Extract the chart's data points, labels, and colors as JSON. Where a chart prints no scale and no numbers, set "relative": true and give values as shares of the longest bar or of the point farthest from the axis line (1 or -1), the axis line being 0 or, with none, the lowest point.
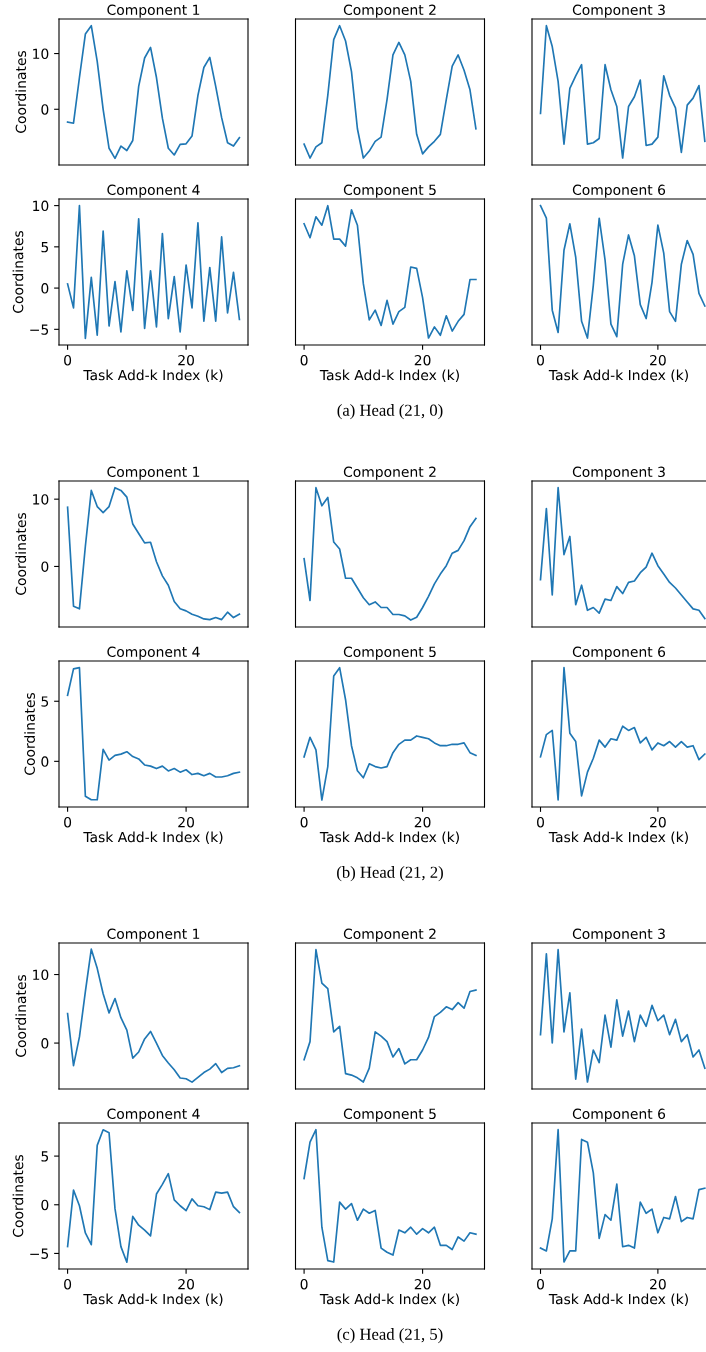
{
  "chart_data": [
    {
      "type": "line",
      "title": "Component 1",
      "ylabel": "Coordinates",
      "categories": [
        null,
        null,
        null,
        null,
        null,
        null,
        null,
        null,
        null,
        null,
        null,
        null,
        null,
        null,
        null,
        null,
        null,
        null,
        null,
        null,
        null,
        null,
        null,
        null,
        null,
        null,
        null,
        null,
        null,
        null
      ],
      "ylim": [
        -10.0,
        16.2
      ],
      "yticks": [
        0,
        10
      ],
      "tick_labels": "y",
      "series": [
        {
          "color": "#1f77b4",
          "values": [
            -2.3,
            -2.5,
            5.7,
            13.5,
            15.0,
            8.6,
            0,
            -7.0,
            -8.8,
            -6.6,
            -7.4,
            -5.6,
            4.1,
            9.2,
            11.1,
            5.7,
            -1.6,
            -7.0,
            -8.2,
            -6.3,
            -6.2,
            -4.8,
            2.5,
            7.5,
            9.3,
            4.1,
            -1.5,
            -6.0,
            -6.6,
            -5.1
          ]
        }
      ]
    },
    {
      "type": "line",
      "title": "Component 2",
      "relative": true,
      "categories": [
        null,
        null,
        null,
        null,
        null,
        null,
        null,
        null,
        null,
        null,
        null,
        null,
        null,
        null,
        null,
        null,
        null,
        null,
        null,
        null,
        null,
        null,
        null,
        null,
        null,
        null,
        null,
        null,
        null,
        null
      ],
      "tick_labels": false,
      "series": [
        {
          "color": "#1f77b4",
          "values": [
            0.15,
            0.05,
            0.13,
            0.16,
            0.5,
            0.9,
            1,
            0.89,
            0.67,
            0.26,
            0.05,
            0.1,
            0.17,
            0.2,
            0.47,
            0.79,
            0.88,
            0.79,
            0.6,
            0.22,
            0.08,
            0.13,
            0.17,
            0.22,
            0.47,
            0.71,
            0.79,
            0.68,
            0.54,
            0.26
          ]
        }
      ]
    },
    {
      "type": "line",
      "title": "Component 3",
      "relative": true,
      "categories": [
        null,
        null,
        null,
        null,
        null,
        null,
        null,
        null,
        null,
        null,
        null,
        null,
        null,
        null,
        null,
        null,
        null,
        null,
        null,
        null,
        null,
        null,
        null,
        null,
        null,
        null,
        null,
        null,
        null
      ],
      "tick_labels": false,
      "series": [
        {
          "color": "#1f77b4",
          "values": [
            0.37,
            1,
            0.85,
            0.6,
            0.15,
            0.55,
            0.64,
            0.72,
            0.15,
            0.16,
            0.19,
            0.72,
            0.54,
            0.42,
            0.05,
            0.42,
            0.49,
            0.61,
            0.14,
            0.15,
            0.2,
            0.64,
            0.5,
            0.41,
            0.09,
            0.43,
            0.48,
            0.57,
            0.17
          ]
        }
      ]
    },
    {
      "type": "line",
      "title": "Component 4",
      "ylabel": "Coordinates",
      "xlabel": "Task Add-k Index (k)",
      "x": [
        0,
        1,
        2,
        3,
        4,
        5,
        6,
        7,
        8,
        9,
        10,
        11,
        12,
        13,
        14,
        15,
        16,
        17,
        18,
        19,
        20,
        21,
        22,
        23,
        24,
        25,
        26,
        27,
        28,
        29
      ],
      "xlim": [
        -1.45,
        30.45
      ],
      "xticks": [
        0,
        20
      ],
      "ylim": [
        -6.9,
        10.8
      ],
      "yticks": [
        {
          "value": -5,
          "label": "−5"
        },
        0,
        5,
        10
      ],
      "series": [
        {
          "color": "#1f77b4",
          "values": [
            0.5,
            -2.4,
            10,
            -6.1,
            1.3,
            -5.7,
            6.9,
            -4.6,
            0.8,
            -5.3,
            2.1,
            -2.7,
            8.4,
            -4.9,
            2.1,
            -4.7,
            6.6,
            -3.7,
            1.4,
            -5.3,
            2.8,
            -2.4,
            7.9,
            -4.0,
            2.5,
            -4.0,
            6.2,
            -3.0,
            1.9,
            -3.8
          ]
        }
      ]
    },
    {
      "type": "line",
      "title": "Component 5",
      "xlabel": "Task Add-k Index (k)",
      "relative": true,
      "x": [
        0,
        1,
        2,
        3,
        4,
        5,
        6,
        7,
        8,
        9,
        10,
        11,
        12,
        13,
        14,
        15,
        16,
        17,
        18,
        19,
        20,
        21,
        22,
        23,
        24,
        25,
        26,
        27,
        28,
        29
      ],
      "xlim": [
        -1.45,
        30.45
      ],
      "xticks": [
        0,
        20
      ],
      "tick_labels": "x",
      "annotations": [
        "(a) Head (21, 0)"
      ],
      "series": [
        {
          "color": "#1f77b4",
          "values": [
            0.87,
            0.77,
            0.92,
            0.86,
            1,
            0.76,
            0.76,
            0.71,
            0.97,
            0.86,
            0.44,
            0.18,
            0.25,
            0.14,
            0.32,
            0.15,
            0.24,
            0.27,
            0.56,
            0.55,
            0.34,
            0.05,
            0.13,
            0.07,
            0.21,
            0.1,
            0.17,
            0.22,
            0.47,
            0.47
          ]
        }
      ]
    },
    {
      "type": "line",
      "title": "Component 6",
      "xlabel": "Task Add-k Index (k)",
      "relative": true,
      "x": [
        0,
        1,
        2,
        3,
        4,
        5,
        6,
        7,
        8,
        9,
        10,
        11,
        12,
        13,
        14,
        15,
        16,
        17,
        18,
        19,
        20,
        21,
        22,
        23,
        24,
        25,
        26,
        27,
        28
      ],
      "xlim": [
        -1.45,
        28.2
      ],
      "xticks": [
        0,
        20
      ],
      "tick_labels": "x",
      "series": [
        {
          "color": "#1f77b4",
          "values": [
            1,
            0.91,
            0.25,
            0.09,
            0.68,
            0.87,
            0.63,
            0.17,
            0.05,
            0.43,
            0.91,
            0.61,
            0.15,
            0.06,
            0.58,
            0.79,
            0.64,
            0.29,
            0.19,
            0.45,
            0.86,
            0.66,
            0.24,
            0.17,
            0.58,
            0.75,
            0.65,
            0.37,
            0.28
          ]
        }
      ]
    },
    {
      "type": "line",
      "title": "Component 1",
      "ylabel": "Coordinates",
      "categories": [
        null,
        null,
        null,
        null,
        null,
        null,
        null,
        null,
        null,
        null,
        null,
        null,
        null,
        null,
        null,
        null,
        null,
        null,
        null,
        null,
        null,
        null,
        null,
        null,
        null,
        null,
        null,
        null,
        null,
        null
      ],
      "ylim": [
        -9.0,
        12.7
      ],
      "yticks": [
        0,
        10
      ],
      "tick_labels": "y",
      "series": [
        {
          "color": "#1f77b4",
          "values": [
            8.8,
            -5.9,
            -6.3,
            3.0,
            11.3,
            8.9,
            8.0,
            8.9,
            11.7,
            11.3,
            10.3,
            6.3,
            4.9,
            3.5,
            3.6,
            0.7,
            -1.4,
            -2.8,
            -5.2,
            -6.3,
            -6.6,
            -7.1,
            -7.4,
            -7.8,
            -7.9,
            -7.6,
            -7.9,
            -6.8,
            -7.6,
            -7.1
          ]
        }
      ]
    },
    {
      "type": "line",
      "title": "Component 2",
      "relative": true,
      "categories": [
        null,
        null,
        null,
        null,
        null,
        null,
        null,
        null,
        null,
        null,
        null,
        null,
        null,
        null,
        null,
        null,
        null,
        null,
        null,
        null,
        null,
        null,
        null,
        null,
        null,
        null,
        null,
        null,
        null,
        null
      ],
      "tick_labels": false,
      "series": [
        {
          "color": "#1f77b4",
          "values": [
            0.49,
            0.19,
            1,
            0.87,
            0.93,
            0.61,
            0.56,
            0.35,
            0.35,
            0.28,
            0.21,
            0.16,
            0.18,
            0.14,
            0.14,
            0.09,
            0.09,
            0.08,
            0.05,
            0.07,
            0.14,
            0.22,
            0.31,
            0.38,
            0.44,
            0.53,
            0.55,
            0.62,
            0.72,
            0.78
          ]
        }
      ]
    },
    {
      "type": "line",
      "title": "Component 3",
      "relative": true,
      "categories": [
        null,
        null,
        null,
        null,
        null,
        null,
        null,
        null,
        null,
        null,
        null,
        null,
        null,
        null,
        null,
        null,
        null,
        null,
        null,
        null,
        null,
        null,
        null,
        null,
        null,
        null,
        null,
        null,
        null
      ],
      "tick_labels": false,
      "series": [
        {
          "color": "#1f77b4",
          "values": [
            0.34,
            0.85,
            0.23,
            1,
            0.52,
            0.65,
            0.16,
            0.3,
            0.12,
            0.14,
            0.1,
            0.2,
            0.19,
            0.29,
            0.24,
            0.32,
            0.33,
            0.39,
            0.43,
            0.53,
            0.44,
            0.38,
            0.32,
            0.28,
            0.23,
            0.18,
            0.13,
            0.12,
            0.06
          ]
        }
      ]
    },
    {
      "type": "line",
      "title": "Component 4",
      "ylabel": "Coordinates",
      "xlabel": "Task Add-k Index (k)",
      "x": [
        0,
        1,
        2,
        3,
        4,
        5,
        6,
        7,
        8,
        9,
        10,
        11,
        12,
        13,
        14,
        15,
        16,
        17,
        18,
        19,
        20,
        21,
        22,
        23,
        24,
        25,
        26,
        27,
        28,
        29
      ],
      "xlim": [
        -1.45,
        30.45
      ],
      "xticks": [
        0,
        20
      ],
      "ylim": [
        -3.8,
        8.35
      ],
      "yticks": [
        0,
        5
      ],
      "series": [
        {
          "color": "#1f77b4",
          "values": [
            5.5,
            7.7,
            7.8,
            -2.9,
            -3.2,
            -3.2,
            1.0,
            0.1,
            0.5,
            0.6,
            0.8,
            0.4,
            0.2,
            -0.3,
            -0.4,
            -0.6,
            -0.4,
            -0.8,
            -0.6,
            -0.9,
            -0.7,
            -1.1,
            -1.0,
            -1.2,
            -1.0,
            -1.3,
            -1.3,
            -1.2,
            -1.0,
            -0.9
          ]
        }
      ]
    },
    {
      "type": "line",
      "title": "Component 5",
      "xlabel": "Task Add-k Index (k)",
      "relative": true,
      "x": [
        0,
        1,
        2,
        3,
        4,
        5,
        6,
        7,
        8,
        9,
        10,
        11,
        12,
        13,
        14,
        15,
        16,
        17,
        18,
        19,
        20,
        21,
        22,
        23,
        24,
        25,
        26,
        27,
        28,
        29
      ],
      "xlim": [
        -1.45,
        30.45
      ],
      "xticks": [
        0,
        20
      ],
      "tick_labels": "x",
      "annotations": [
        "(b) Head (21, 2)"
      ],
      "series": [
        {
          "color": "#1f77b4",
          "values": [
            0.36,
            0.5,
            0.41,
            0.05,
            0.29,
            0.94,
            1,
            0.77,
            0.44,
            0.26,
            0.21,
            0.31,
            0.29,
            0.28,
            0.29,
            0.39,
            0.45,
            0.48,
            0.48,
            0.51,
            0.5,
            0.49,
            0.46,
            0.44,
            0.44,
            0.45,
            0.45,
            0.46,
            0.39,
            0.37
          ]
        }
      ]
    },
    {
      "type": "line",
      "title": "Component 6",
      "xlabel": "Task Add-k Index (k)",
      "relative": true,
      "x": [
        0,
        1,
        2,
        3,
        4,
        5,
        6,
        7,
        8,
        9,
        10,
        11,
        12,
        13,
        14,
        15,
        16,
        17,
        18,
        19,
        20,
        21,
        22,
        23,
        24,
        25,
        26,
        27,
        28
      ],
      "xlim": [
        -1.45,
        28.2
      ],
      "xticks": [
        0,
        20
      ],
      "tick_labels": "x",
      "series": [
        {
          "color": "#1f77b4",
          "values": [
            0.36,
            0.52,
            0.55,
            0.05,
            1,
            0.53,
            0.47,
            0.08,
            0.25,
            0.35,
            0.48,
            0.43,
            0.49,
            0.48,
            0.58,
            0.55,
            0.57,
            0.46,
            0.5,
            0.41,
            0.46,
            0.44,
            0.47,
            0.43,
            0.47,
            0.43,
            0.44,
            0.34,
            0.38
          ]
        }
      ]
    },
    {
      "type": "line",
      "title": "Component 1",
      "ylabel": "Coordinates",
      "categories": [
        null,
        null,
        null,
        null,
        null,
        null,
        null,
        null,
        null,
        null,
        null,
        null,
        null,
        null,
        null,
        null,
        null,
        null,
        null,
        null,
        null,
        null,
        null,
        null,
        null,
        null,
        null,
        null,
        null,
        null
      ],
      "ylim": [
        -6.7,
        14.6
      ],
      "yticks": [
        0,
        10
      ],
      "tick_labels": "y",
      "series": [
        {
          "color": "#1f77b4",
          "values": [
            4.3,
            -3.3,
            0.9,
            7.5,
            13.7,
            10.9,
            7.2,
            4.4,
            6.5,
            3.7,
            1.9,
            -2.2,
            -1.3,
            0.6,
            1.7,
            0,
            -1.8,
            -2.9,
            -3.9,
            -5.1,
            -5.2,
            -5.7,
            -5.0,
            -4.3,
            -3.8,
            -3.0,
            -4.3,
            -3.7,
            -3.6,
            -3.3
          ]
        }
      ]
    },
    {
      "type": "line",
      "title": "Component 2",
      "relative": true,
      "categories": [
        null,
        null,
        null,
        null,
        null,
        null,
        null,
        null,
        null,
        null,
        null,
        null,
        null,
        null,
        null,
        null,
        null,
        null,
        null,
        null,
        null,
        null,
        null,
        null,
        null,
        null,
        null,
        null,
        null,
        null
      ],
      "tick_labels": false,
      "series": [
        {
          "color": "#1f77b4",
          "values": [
            0.21,
            0.34,
            1,
            0.76,
            0.72,
            0.41,
            0.45,
            0.11,
            0.1,
            0.08,
            0.05,
            0.15,
            0.41,
            0.38,
            0.34,
            0.23,
            0.29,
            0.18,
            0.21,
            0.21,
            0.28,
            0.37,
            0.52,
            0.55,
            0.59,
            0.57,
            0.62,
            0.58,
            0.7,
            0.71
          ]
        }
      ]
    },
    {
      "type": "line",
      "title": "Component 3",
      "relative": true,
      "categories": [
        null,
        null,
        null,
        null,
        null,
        null,
        null,
        null,
        null,
        null,
        null,
        null,
        null,
        null,
        null,
        null,
        null,
        null,
        null,
        null,
        null,
        null,
        null,
        null,
        null,
        null,
        null,
        null,
        null
      ],
      "tick_labels": false,
      "series": [
        {
          "color": "#1f77b4",
          "values": [
            0.39,
            0.97,
            0.33,
            1,
            0.41,
            0.69,
            0.07,
            0.43,
            0.05,
            0.28,
            0.19,
            0.53,
            0.3,
            0.64,
            0.38,
            0.56,
            0.34,
            0.53,
            0.45,
            0.6,
            0.49,
            0.53,
            0.39,
            0.5,
            0.34,
            0.39,
            0.23,
            0.28,
            0.15
          ]
        }
      ]
    },
    {
      "type": "line",
      "title": "Component 4",
      "ylabel": "Coordinates",
      "xlabel": "Task Add-k Index (k)",
      "x": [
        0,
        1,
        2,
        3,
        4,
        5,
        6,
        7,
        8,
        9,
        10,
        11,
        12,
        13,
        14,
        15,
        16,
        17,
        18,
        19,
        20,
        21,
        22,
        23,
        24,
        25,
        26,
        27,
        28,
        29
      ],
      "xlim": [
        -1.45,
        30.45
      ],
      "xticks": [
        0,
        20
      ],
      "ylim": [
        -6.6,
        8.4
      ],
      "yticks": [
        {
          "value": -5,
          "label": "−5"
        },
        0,
        5
      ],
      "series": [
        {
          "color": "#1f77b4",
          "values": [
            -4.3,
            1.5,
            -0.1,
            -2.9,
            -4.1,
            6.1,
            7.7,
            7.4,
            -0.4,
            -4.3,
            -5.9,
            -1.2,
            -2.1,
            -2.6,
            -3.2,
            1.1,
            2.1,
            3.2,
            0.5,
            -0.1,
            -0.6,
            0.6,
            -0.1,
            -0.2,
            -0.5,
            1.3,
            1.2,
            1.3,
            -0.2,
            -0.8
          ]
        }
      ]
    },
    {
      "type": "line",
      "title": "Component 5",
      "xlabel": "Task Add-k Index (k)",
      "relative": true,
      "x": [
        0,
        1,
        2,
        3,
        4,
        5,
        6,
        7,
        8,
        9,
        10,
        11,
        12,
        13,
        14,
        15,
        16,
        17,
        18,
        19,
        20,
        21,
        22,
        23,
        24,
        25,
        26,
        27,
        28,
        29
      ],
      "xlim": [
        -1.45,
        30.45
      ],
      "xticks": [
        0,
        20
      ],
      "tick_labels": "x",
      "annotations": [
        "(c) Head (21, 5)"
      ],
      "series": [
        {
          "color": "#1f77b4",
          "values": [
            0.65,
            0.91,
            1,
            0.3,
            0.06,
            0.05,
            0.48,
            0.43,
            0.47,
            0.35,
            0.43,
            0.4,
            0.42,
            0.15,
            0.12,
            0.1,
            0.28,
            0.26,
            0.3,
            0.25,
            0.29,
            0.26,
            0.3,
            0.17,
            0.17,
            0.14,
            0.23,
            0.2,
            0.26,
            0.25
          ]
        }
      ]
    },
    {
      "type": "line",
      "title": "Component 6",
      "xlabel": "Task Add-k Index (k)",
      "relative": true,
      "x": [
        0,
        1,
        2,
        3,
        4,
        5,
        6,
        7,
        8,
        9,
        10,
        11,
        12,
        13,
        14,
        15,
        16,
        17,
        18,
        19,
        20,
        21,
        22,
        23,
        24,
        25,
        26,
        27,
        28
      ],
      "xlim": [
        -1.45,
        28.2
      ],
      "xticks": [
        0,
        20
      ],
      "tick_labels": "x",
      "series": [
        {
          "color": "#1f77b4",
          "values": [
            0.15,
            0.13,
            0.36,
            1,
            0.05,
            0.13,
            0.13,
            0.93,
            0.91,
            0.69,
            0.22,
            0.39,
            0.35,
            0.61,
            0.16,
            0.17,
            0.15,
            0.48,
            0.4,
            0.43,
            0.26,
            0.37,
            0.36,
            0.52,
            0.34,
            0.37,
            0.36,
            0.57,
            0.58
          ]
        }
      ]
    }
  ]
}
